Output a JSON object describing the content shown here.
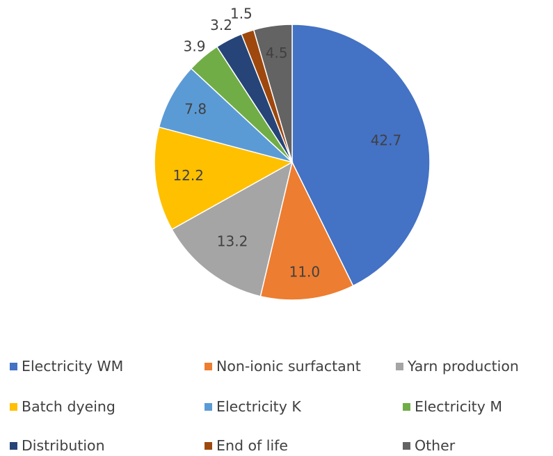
{
  "chart_data": {
    "type": "pie",
    "categories": [
      "Electricity WM",
      "Non-ionic surfactant",
      "Yarn production",
      "Batch dyeing",
      "Electricity K",
      "Electricity M",
      "Distribution",
      "End of life",
      "Other"
    ],
    "values": [
      42.7,
      11.0,
      13.2,
      12.2,
      7.8,
      3.9,
      3.2,
      1.5,
      4.5
    ],
    "labels": [
      "42.7",
      "11.0",
      "13.2",
      "12.2",
      "7.8",
      "3.9",
      "3.2",
      "1.5",
      "4.5"
    ],
    "colors": [
      "#4472C4",
      "#ED7D31",
      "#A5A5A5",
      "#FFC000",
      "#5B9BD5",
      "#70AD47",
      "#264478",
      "#9E480E",
      "#636363"
    ],
    "title": "",
    "legend_position": "bottom",
    "start_angle": "top",
    "direction": "clockwise"
  },
  "legend": [
    {
      "label": "Electricity WM",
      "color": "#4472C4"
    },
    {
      "label": "Non-ionic surfactant",
      "color": "#ED7D31"
    },
    {
      "label": "Yarn production",
      "color": "#A5A5A5"
    },
    {
      "label": "Batch dyeing",
      "color": "#FFC000"
    },
    {
      "label": "Electricity K",
      "color": "#5B9BD5"
    },
    {
      "label": "Electricity M",
      "color": "#70AD47"
    },
    {
      "label": "Distribution",
      "color": "#264478"
    },
    {
      "label": "End of life",
      "color": "#9E480E"
    },
    {
      "label": "Other",
      "color": "#636363"
    }
  ]
}
